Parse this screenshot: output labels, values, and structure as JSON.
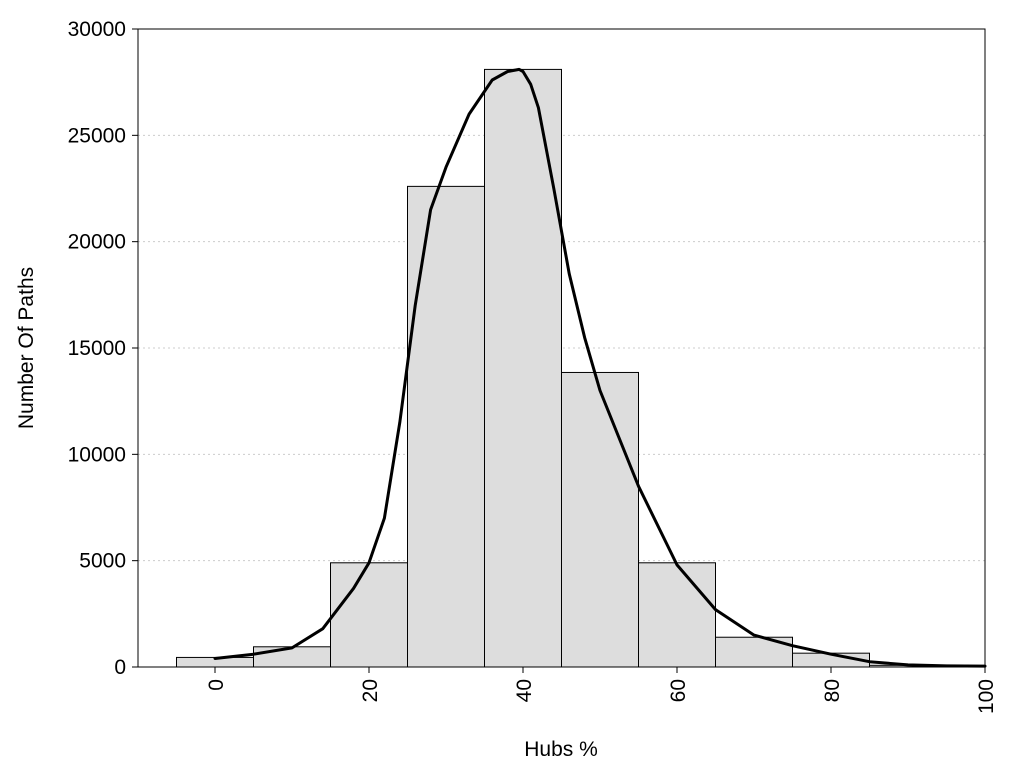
{
  "chart_data": {
    "type": "bar",
    "title": "",
    "xlabel": "Hubs %",
    "ylabel": "Number Of Paths",
    "xlim": [
      -10,
      100
    ],
    "ylim": [
      0,
      30000
    ],
    "x_ticks": [
      "0",
      "20",
      "40",
      "60",
      "80",
      "100"
    ],
    "y_ticks": [
      "0",
      "5000",
      "10000",
      "15000",
      "20000",
      "25000",
      "30000"
    ],
    "grid": "horizontal dotted",
    "bin_width": 10,
    "bins": [
      {
        "center": 0,
        "value": 450
      },
      {
        "center": 10,
        "value": 950
      },
      {
        "center": 20,
        "value": 4900
      },
      {
        "center": 30,
        "value": 22600
      },
      {
        "center": 40,
        "value": 28100
      },
      {
        "center": 50,
        "value": 13850
      },
      {
        "center": 60,
        "value": 4900
      },
      {
        "center": 70,
        "value": 1400
      },
      {
        "center": 80,
        "value": 650
      },
      {
        "center": 90,
        "value": 80
      }
    ],
    "density_curve": {
      "x": [
        0,
        5,
        10,
        14,
        18,
        20,
        22,
        24,
        26,
        28,
        30,
        33,
        36,
        38,
        39.5,
        40,
        41,
        42,
        44,
        46,
        48,
        50,
        55,
        60,
        65,
        70,
        75,
        80,
        85,
        90,
        95,
        100
      ],
      "y": [
        400,
        600,
        900,
        1800,
        3700,
        4900,
        7000,
        11500,
        17000,
        21500,
        23500,
        26000,
        27600,
        28000,
        28100,
        28000,
        27400,
        26300,
        22500,
        18500,
        15500,
        13000,
        8500,
        4800,
        2700,
        1500,
        1000,
        600,
        250,
        100,
        50,
        40
      ]
    },
    "colors": {
      "bar_fill": "#dddddd",
      "bar_stroke": "#000000",
      "curve": "#000000",
      "grid": "#cccccc"
    }
  }
}
